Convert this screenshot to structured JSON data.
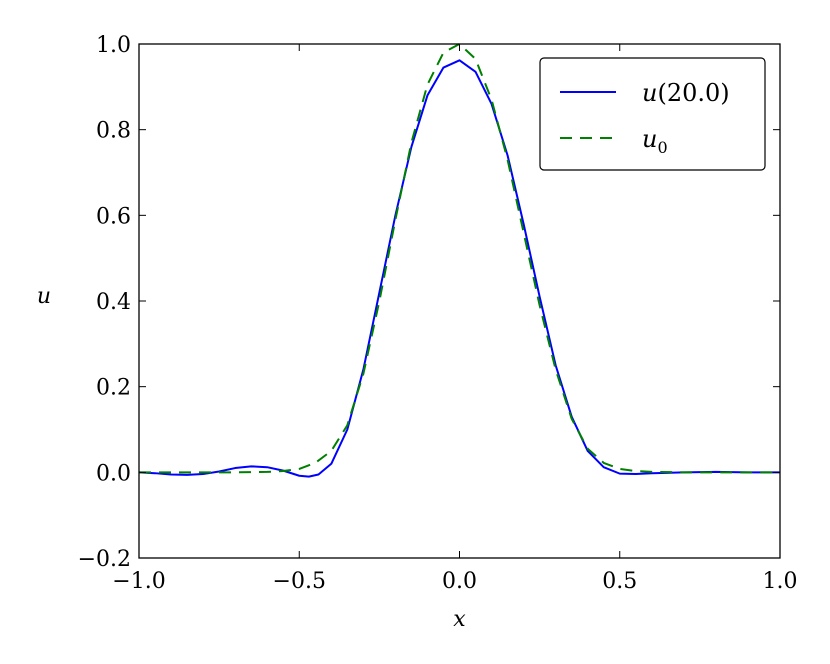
{
  "chart_data": {
    "type": "line",
    "xlabel": "x",
    "ylabel": "u",
    "xlim": [
      -1.0,
      1.0
    ],
    "ylim": [
      -0.2,
      1.0
    ],
    "x_ticks": [
      "−1.0",
      "−0.5",
      "0.0",
      "0.5",
      "1.0"
    ],
    "x_tick_values": [
      -1.0,
      -0.5,
      0.0,
      0.5,
      1.0
    ],
    "y_ticks": [
      "−0.2",
      "0.0",
      "0.2",
      "0.4",
      "0.6",
      "0.8",
      "1.0"
    ],
    "y_tick_values": [
      -0.2,
      0.0,
      0.2,
      0.4,
      0.6,
      0.8,
      1.0
    ],
    "grid": false,
    "legend_position": "top-right",
    "series": [
      {
        "name": "u(20.0)",
        "legend_main": "u",
        "legend_arg": "(20.0)",
        "color": "#0000ff",
        "style": "solid",
        "x": [
          -1.0,
          -0.95,
          -0.9,
          -0.85,
          -0.8,
          -0.75,
          -0.7,
          -0.65,
          -0.6,
          -0.55,
          -0.5,
          -0.47,
          -0.44,
          -0.4,
          -0.35,
          -0.3,
          -0.25,
          -0.2,
          -0.15,
          -0.1,
          -0.05,
          0.0,
          0.05,
          0.1,
          0.15,
          0.2,
          0.25,
          0.3,
          0.35,
          0.4,
          0.45,
          0.5,
          0.55,
          0.6,
          0.7,
          0.8,
          0.9,
          1.0
        ],
        "y": [
          0.0,
          -0.002,
          -0.005,
          -0.006,
          -0.004,
          0.002,
          0.01,
          0.014,
          0.012,
          0.004,
          -0.008,
          -0.01,
          -0.005,
          0.02,
          0.1,
          0.24,
          0.42,
          0.6,
          0.76,
          0.88,
          0.945,
          0.962,
          0.935,
          0.86,
          0.74,
          0.58,
          0.41,
          0.25,
          0.13,
          0.05,
          0.012,
          -0.003,
          -0.004,
          -0.002,
          0.0,
          0.001,
          0.0,
          0.0
        ]
      },
      {
        "name": "u0",
        "legend_main": "u",
        "legend_sub": "0",
        "color": "#008000",
        "style": "dashed",
        "x": [
          -1.0,
          -0.9,
          -0.8,
          -0.7,
          -0.6,
          -0.55,
          -0.5,
          -0.45,
          -0.4,
          -0.35,
          -0.3,
          -0.25,
          -0.2,
          -0.15,
          -0.1,
          -0.05,
          0.0,
          0.05,
          0.1,
          0.15,
          0.2,
          0.25,
          0.3,
          0.35,
          0.4,
          0.45,
          0.5,
          0.55,
          0.6,
          0.7,
          0.8,
          0.9,
          1.0
        ],
        "y": [
          0.0,
          0.0,
          0.0,
          0.0,
          0.001,
          0.003,
          0.008,
          0.022,
          0.05,
          0.11,
          0.23,
          0.4,
          0.59,
          0.77,
          0.905,
          0.98,
          1.0,
          0.965,
          0.87,
          0.73,
          0.56,
          0.39,
          0.24,
          0.125,
          0.055,
          0.022,
          0.008,
          0.003,
          0.001,
          0.0,
          0.0,
          0.0,
          0.0
        ]
      }
    ]
  }
}
